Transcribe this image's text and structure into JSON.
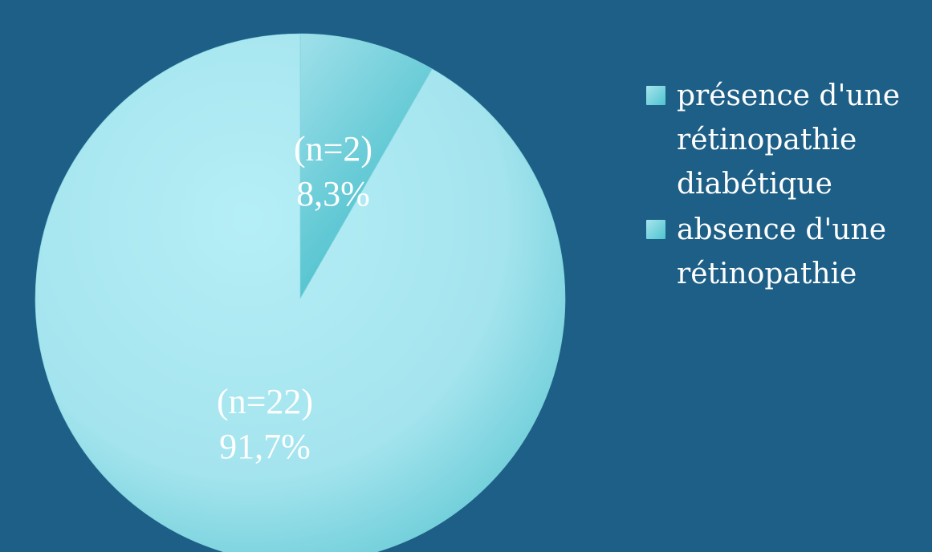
{
  "chart_data": {
    "type": "pie",
    "title": "",
    "series": [
      {
        "categories": [
          "présence d'une rétinopathie diabétique",
          "absence d'une rétinopathie"
        ],
        "counts": [
          2,
          22
        ],
        "values": [
          8.3,
          91.7
        ],
        "labels": [
          {
            "count": "(n=2)",
            "percent": "8,3%"
          },
          {
            "count": "(n=22)",
            "percent": "91,7%"
          }
        ]
      }
    ],
    "legend_placement": "right",
    "colors": {
      "background": "#1d5f86",
      "slice_1": "#4fc4cf",
      "slice_2": "#a7e5ee"
    }
  },
  "legend": {
    "items": [
      {
        "label_lines": [
          "présence d'une",
          "rétinopathie",
          "diabétique"
        ]
      },
      {
        "label_lines": [
          "absence d'une",
          "rétinopathie"
        ]
      }
    ]
  }
}
